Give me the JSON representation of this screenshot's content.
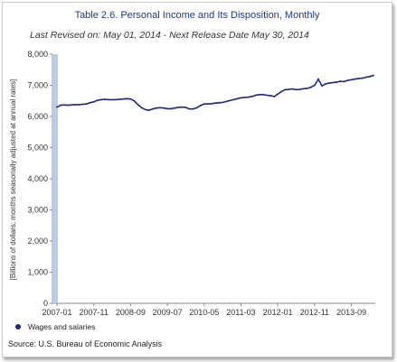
{
  "chart_data": {
    "type": "line",
    "title": "Table 2.6. Personal Income and Its Disposition, Monthly",
    "subtitle": "Last Revised on: May 01, 2014 - Next Release Date May 30, 2014",
    "ylabel": "[Billions of dollars; months seasonally adjusted at annual rates]",
    "xlabel": "",
    "ylim": [
      0,
      8000
    ],
    "y_ticks": [
      "0",
      "1,000",
      "2,000",
      "3,000",
      "4,000",
      "5,000",
      "6,000",
      "7,000",
      "8,000"
    ],
    "x_tick_labels": [
      "2007-01",
      "2007-11",
      "2008-09",
      "2009-07",
      "2010-05",
      "2011-03",
      "2012-01",
      "2012-11",
      "2013-09"
    ],
    "grid": false,
    "legend_position": "bottom-left",
    "line_color": "#1f2a7a",
    "series": [
      {
        "name": "Wages and salaries",
        "x": [
          "2007-01",
          "2007-02",
          "2007-03",
          "2007-04",
          "2007-05",
          "2007-06",
          "2007-07",
          "2007-08",
          "2007-09",
          "2007-10",
          "2007-11",
          "2007-12",
          "2008-01",
          "2008-02",
          "2008-03",
          "2008-04",
          "2008-05",
          "2008-06",
          "2008-07",
          "2008-08",
          "2008-09",
          "2008-10",
          "2008-11",
          "2008-12",
          "2009-01",
          "2009-02",
          "2009-03",
          "2009-04",
          "2009-05",
          "2009-06",
          "2009-07",
          "2009-08",
          "2009-09",
          "2009-10",
          "2009-11",
          "2009-12",
          "2010-01",
          "2010-02",
          "2010-03",
          "2010-04",
          "2010-05",
          "2010-06",
          "2010-07",
          "2010-08",
          "2010-09",
          "2010-10",
          "2010-11",
          "2010-12",
          "2011-01",
          "2011-02",
          "2011-03",
          "2011-04",
          "2011-05",
          "2011-06",
          "2011-07",
          "2011-08",
          "2011-09",
          "2011-10",
          "2011-11",
          "2011-12",
          "2012-01",
          "2012-02",
          "2012-03",
          "2012-04",
          "2012-05",
          "2012-06",
          "2012-07",
          "2012-08",
          "2012-09",
          "2012-10",
          "2012-11",
          "2012-12",
          "2013-01",
          "2013-02",
          "2013-03",
          "2013-04",
          "2013-05",
          "2013-06",
          "2013-07",
          "2013-08",
          "2013-09",
          "2013-10",
          "2013-11",
          "2013-12",
          "2014-01",
          "2014-02",
          "2014-03"
        ],
        "values": [
          6300,
          6360,
          6370,
          6360,
          6370,
          6380,
          6380,
          6390,
          6400,
          6440,
          6470,
          6520,
          6540,
          6550,
          6540,
          6540,
          6540,
          6550,
          6560,
          6570,
          6560,
          6500,
          6380,
          6280,
          6220,
          6200,
          6240,
          6270,
          6280,
          6270,
          6250,
          6250,
          6270,
          6290,
          6300,
          6290,
          6240,
          6240,
          6280,
          6350,
          6400,
          6400,
          6410,
          6430,
          6440,
          6450,
          6480,
          6510,
          6540,
          6570,
          6600,
          6610,
          6620,
          6640,
          6680,
          6700,
          6700,
          6680,
          6670,
          6640,
          6720,
          6800,
          6860,
          6870,
          6880,
          6860,
          6870,
          6890,
          6900,
          6940,
          7000,
          7200,
          6980,
          7050,
          7070,
          7090,
          7100,
          7130,
          7120,
          7160,
          7180,
          7200,
          7220,
          7230,
          7260,
          7280,
          7320
        ]
      }
    ]
  },
  "legend": {
    "series_label": "Wages and salaries"
  },
  "source": "Source: U.S. Bureau of Economic Analysis"
}
